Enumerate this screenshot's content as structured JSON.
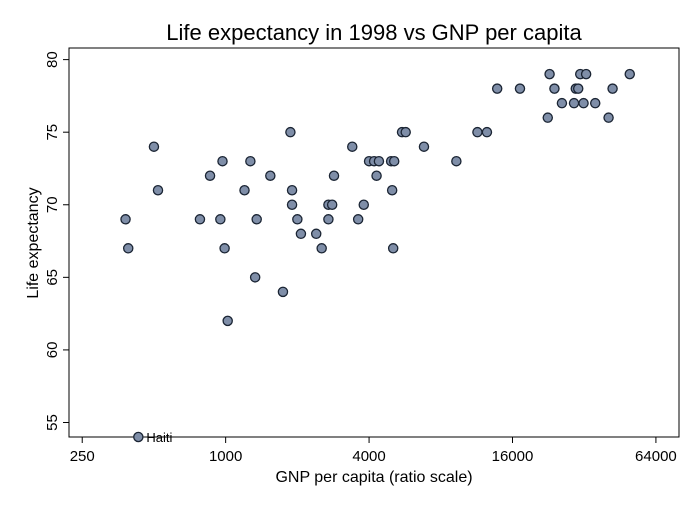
{
  "chart_data": {
    "type": "scatter",
    "title": "Life expectancy in 1998 vs GNP per capita",
    "xlabel": "GNP per capita (ratio scale)",
    "ylabel": "Life expectancy",
    "x_scale": "log2",
    "xlim": [
      220,
      80000
    ],
    "ylim": [
      54,
      80.8
    ],
    "x_ticks": [
      250,
      1000,
      4000,
      16000,
      64000
    ],
    "x_tick_labels": [
      "250",
      "1000",
      "4000",
      "16000",
      "64000"
    ],
    "y_ticks": [
      55,
      60,
      65,
      70,
      75,
      80
    ],
    "y_tick_labels": [
      "55",
      "60",
      "65",
      "70",
      "75",
      "80"
    ],
    "grid": false,
    "legend": "none",
    "colors": {
      "marker_fill": "#7f8ea8",
      "marker_stroke": "#1a2433",
      "frame": "#000000"
    },
    "points": [
      {
        "x": 430,
        "y": 54,
        "label": "Haiti"
      },
      {
        "x": 380,
        "y": 69
      },
      {
        "x": 390,
        "y": 67
      },
      {
        "x": 500,
        "y": 74
      },
      {
        "x": 520,
        "y": 71
      },
      {
        "x": 780,
        "y": 69
      },
      {
        "x": 860,
        "y": 72
      },
      {
        "x": 950,
        "y": 69
      },
      {
        "x": 970,
        "y": 73
      },
      {
        "x": 990,
        "y": 67
      },
      {
        "x": 1020,
        "y": 62
      },
      {
        "x": 1200,
        "y": 71
      },
      {
        "x": 1270,
        "y": 73
      },
      {
        "x": 1330,
        "y": 65
      },
      {
        "x": 1350,
        "y": 69
      },
      {
        "x": 1540,
        "y": 72
      },
      {
        "x": 1740,
        "y": 64
      },
      {
        "x": 1870,
        "y": 75
      },
      {
        "x": 1900,
        "y": 71
      },
      {
        "x": 1900,
        "y": 70
      },
      {
        "x": 2000,
        "y": 69
      },
      {
        "x": 2070,
        "y": 68
      },
      {
        "x": 2400,
        "y": 68
      },
      {
        "x": 2530,
        "y": 67
      },
      {
        "x": 2700,
        "y": 70
      },
      {
        "x": 2700,
        "y": 69
      },
      {
        "x": 2800,
        "y": 70
      },
      {
        "x": 2850,
        "y": 72
      },
      {
        "x": 3400,
        "y": 74
      },
      {
        "x": 3600,
        "y": 69
      },
      {
        "x": 3800,
        "y": 70
      },
      {
        "x": 4000,
        "y": 73
      },
      {
        "x": 4200,
        "y": 73
      },
      {
        "x": 4300,
        "y": 72
      },
      {
        "x": 4400,
        "y": 73
      },
      {
        "x": 4950,
        "y": 73
      },
      {
        "x": 5000,
        "y": 71
      },
      {
        "x": 5050,
        "y": 67
      },
      {
        "x": 5100,
        "y": 73
      },
      {
        "x": 5500,
        "y": 75
      },
      {
        "x": 5700,
        "y": 75
      },
      {
        "x": 6800,
        "y": 74
      },
      {
        "x": 9300,
        "y": 73
      },
      {
        "x": 11400,
        "y": 75
      },
      {
        "x": 12500,
        "y": 75
      },
      {
        "x": 13800,
        "y": 78
      },
      {
        "x": 17200,
        "y": 78
      },
      {
        "x": 22500,
        "y": 76
      },
      {
        "x": 22900,
        "y": 79
      },
      {
        "x": 24000,
        "y": 78
      },
      {
        "x": 25800,
        "y": 77
      },
      {
        "x": 29000,
        "y": 77
      },
      {
        "x": 29500,
        "y": 78
      },
      {
        "x": 30200,
        "y": 78
      },
      {
        "x": 30800,
        "y": 79
      },
      {
        "x": 31800,
        "y": 77
      },
      {
        "x": 32600,
        "y": 79
      },
      {
        "x": 35600,
        "y": 77
      },
      {
        "x": 40500,
        "y": 76
      },
      {
        "x": 42100,
        "y": 78
      },
      {
        "x": 49700,
        "y": 79
      }
    ]
  }
}
